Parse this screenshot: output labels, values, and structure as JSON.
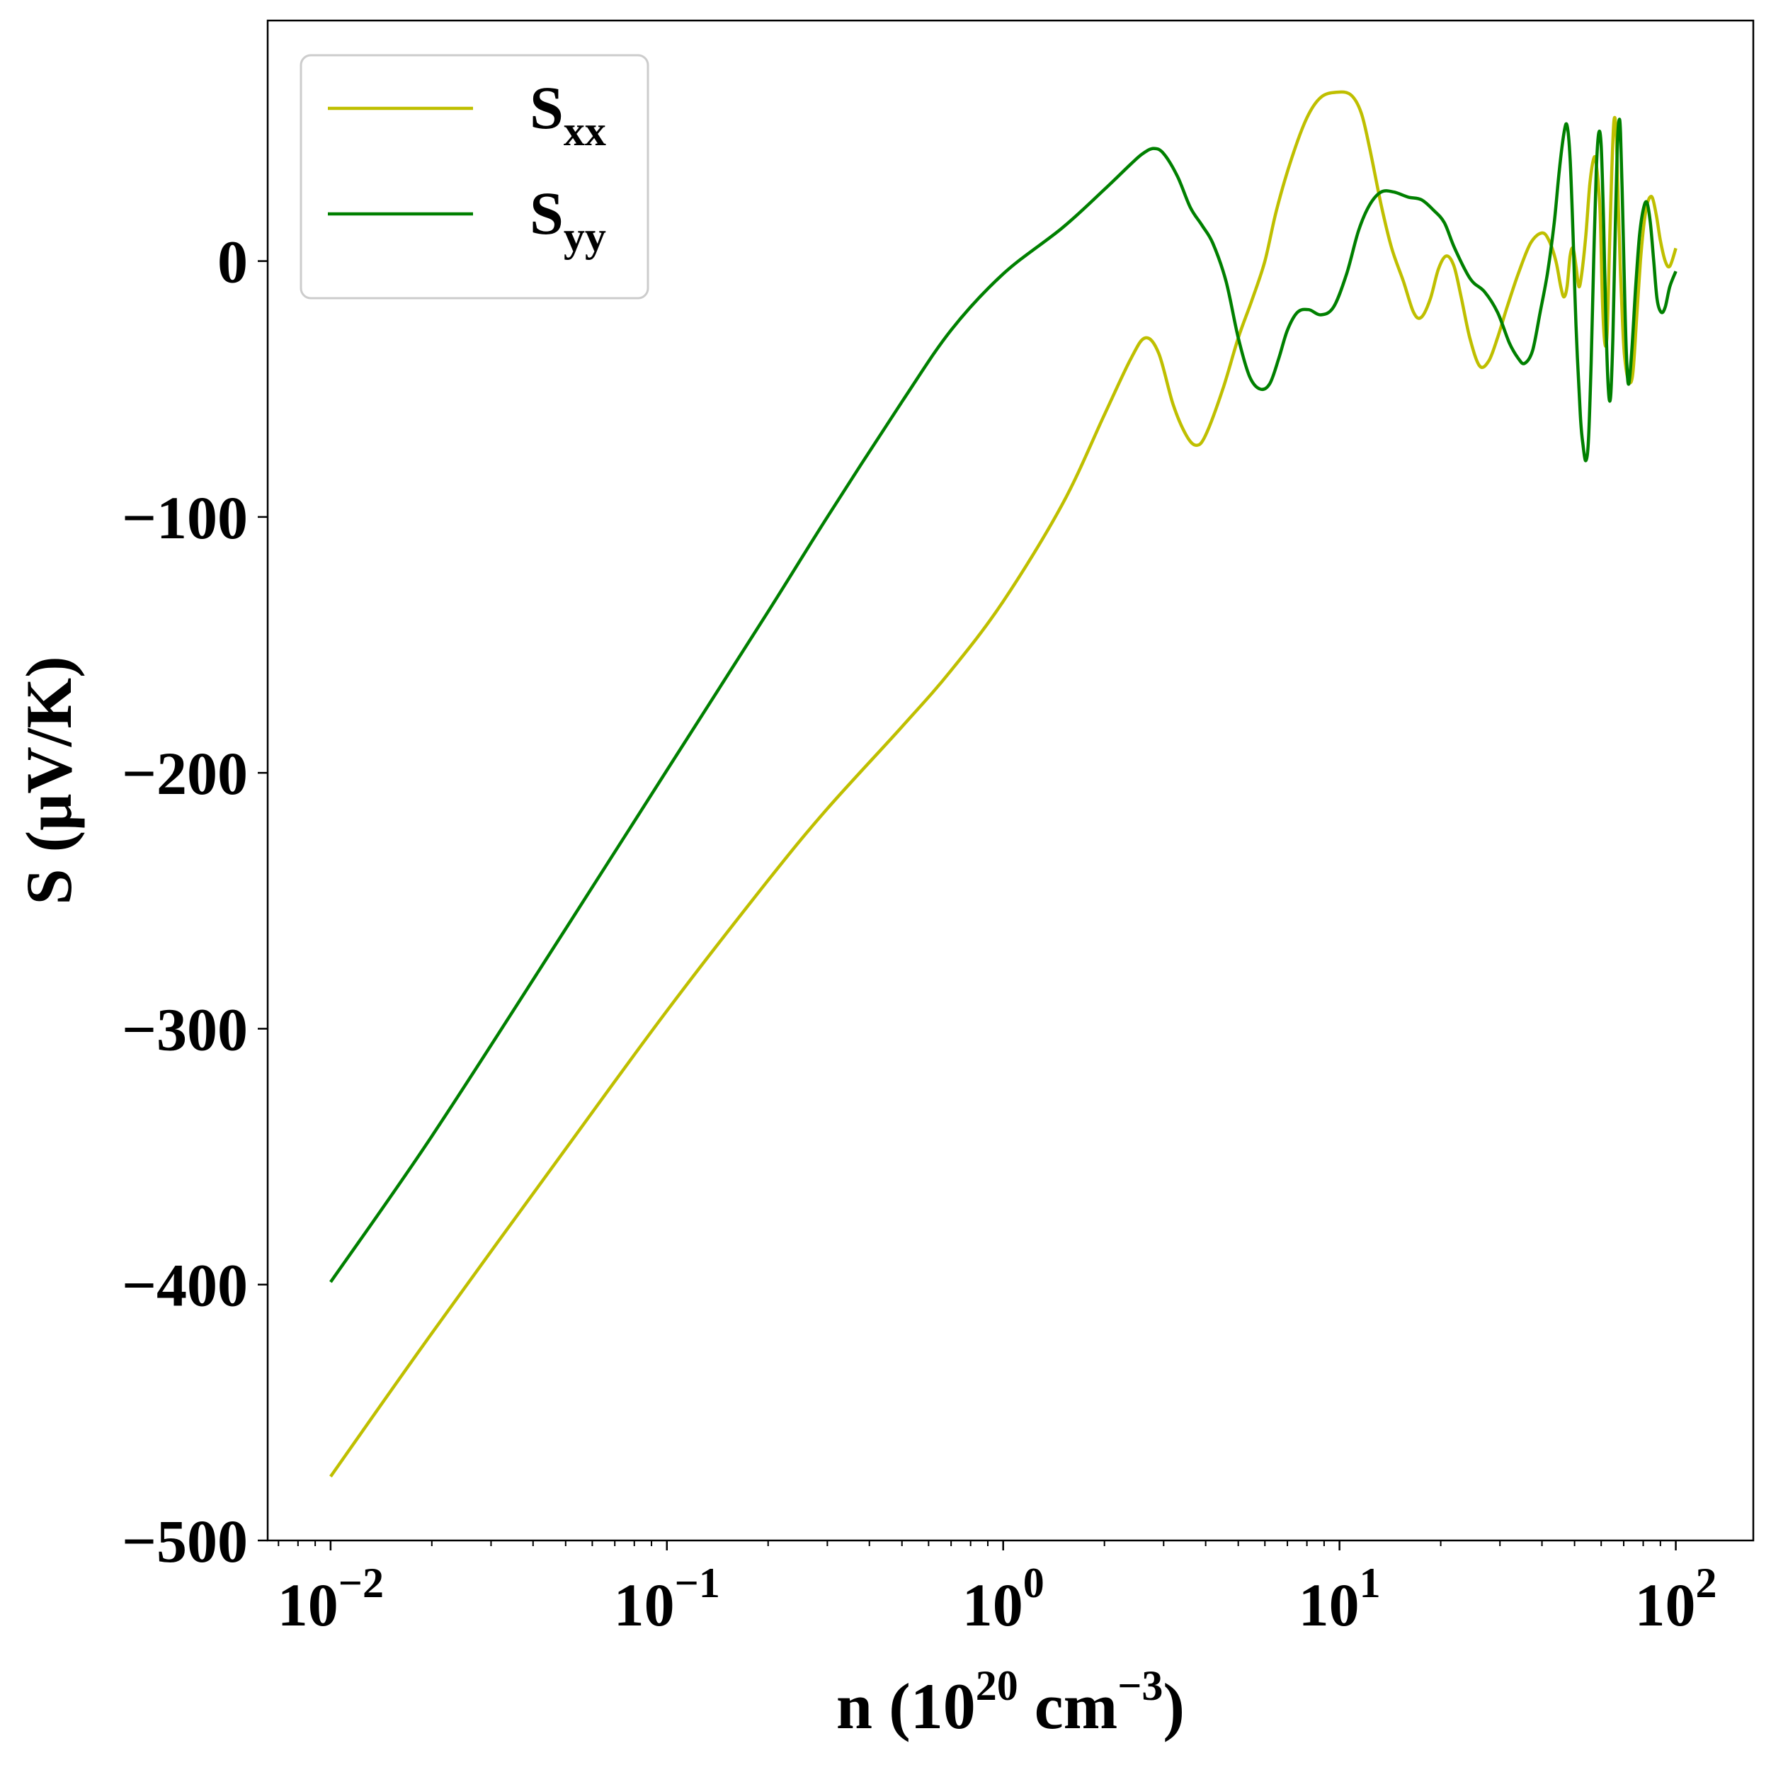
{
  "chart_data": {
    "type": "line",
    "title": "",
    "xlabel": {
      "base": "n (10",
      "exp1": "20",
      "mid": " cm",
      "exp2": "−3",
      "end": ")"
    },
    "ylabel": "S (μV/K)",
    "xscale": "log",
    "xlim": [
      0.0065,
      170
    ],
    "ylim": [
      -500,
      94
    ],
    "x_ticks": [
      {
        "value": 0.01,
        "base": "10",
        "exp": "−2"
      },
      {
        "value": 0.1,
        "base": "10",
        "exp": "−1"
      },
      {
        "value": 1,
        "base": "10",
        "exp": "0"
      },
      {
        "value": 10,
        "base": "10",
        "exp": "1"
      },
      {
        "value": 100,
        "base": "10",
        "exp": "2"
      }
    ],
    "y_ticks": [
      {
        "value": 0,
        "label": "0"
      },
      {
        "value": -100,
        "label": "−100"
      },
      {
        "value": -200,
        "label": "−200"
      },
      {
        "value": -300,
        "label": "−300"
      },
      {
        "value": -400,
        "label": "−400"
      },
      {
        "value": -500,
        "label": "−500"
      }
    ],
    "grid": false,
    "legend": {
      "position": "top-left"
    },
    "series": [
      {
        "name": "S_xx",
        "label_main": "S",
        "label_sub": "xx",
        "color": "#bfbf00",
        "points": [
          [
            0.01,
            -475
          ],
          [
            0.02,
            -419
          ],
          [
            0.05,
            -347
          ],
          [
            0.1,
            -293
          ],
          [
            0.2,
            -242
          ],
          [
            0.3,
            -214
          ],
          [
            0.5,
            -182
          ],
          [
            0.7,
            -160
          ],
          [
            1.0,
            -133
          ],
          [
            1.5,
            -95
          ],
          [
            2.0,
            -60
          ],
          [
            2.4,
            -38
          ],
          [
            2.65,
            -30
          ],
          [
            2.9,
            -36
          ],
          [
            3.2,
            -56
          ],
          [
            3.5,
            -68
          ],
          [
            3.75,
            -72
          ],
          [
            4.0,
            -68
          ],
          [
            4.5,
            -50
          ],
          [
            5.0,
            -30
          ],
          [
            5.5,
            -15
          ],
          [
            6.0,
            0
          ],
          [
            6.5,
            20
          ],
          [
            7.2,
            40
          ],
          [
            8.0,
            56
          ],
          [
            8.8,
            64
          ],
          [
            9.8,
            66
          ],
          [
            10.8,
            65
          ],
          [
            11.6,
            58
          ],
          [
            12.3,
            44
          ],
          [
            13.3,
            22
          ],
          [
            14.3,
            5
          ],
          [
            15.5,
            -8
          ],
          [
            16.6,
            -20
          ],
          [
            17.5,
            -22
          ],
          [
            18.6,
            -15
          ],
          [
            19.7,
            -3
          ],
          [
            20.8,
            2
          ],
          [
            21.9,
            -2
          ],
          [
            23.0,
            -14
          ],
          [
            24.4,
            -30
          ],
          [
            26.1,
            -41
          ],
          [
            27.8,
            -39
          ],
          [
            29.5,
            -30
          ],
          [
            31.5,
            -18
          ],
          [
            34.0,
            -5
          ],
          [
            37.0,
            7
          ],
          [
            40.0,
            11
          ],
          [
            42.0,
            8
          ],
          [
            44.0,
            0
          ],
          [
            45.5,
            -10
          ],
          [
            46.5,
            -14
          ],
          [
            47.5,
            -10
          ],
          [
            48.5,
            2
          ],
          [
            49.5,
            5
          ],
          [
            50.5,
            -2
          ],
          [
            51.5,
            -10
          ],
          [
            52.5,
            -5
          ],
          [
            54.0,
            10
          ],
          [
            55.5,
            30
          ],
          [
            57.0,
            40
          ],
          [
            58.0,
            38
          ],
          [
            59.5,
            20
          ],
          [
            60.5,
            -15
          ],
          [
            61.5,
            -32
          ],
          [
            62.5,
            -28
          ],
          [
            63.5,
            5
          ],
          [
            64.5,
            35
          ],
          [
            65.5,
            55
          ],
          [
            66.5,
            50
          ],
          [
            67.5,
            20
          ],
          [
            68.5,
            -5
          ],
          [
            69.5,
            -25
          ],
          [
            70.5,
            -38
          ],
          [
            72.5,
            -47
          ],
          [
            74.5,
            -44
          ],
          [
            76.5,
            -22
          ],
          [
            78.5,
            0
          ],
          [
            80.5,
            15
          ],
          [
            82.5,
            23
          ],
          [
            85.0,
            25
          ],
          [
            87.5,
            18
          ],
          [
            90.0,
            8
          ],
          [
            93.0,
            0
          ],
          [
            96.0,
            -2
          ],
          [
            100.0,
            5
          ]
        ]
      },
      {
        "name": "S_yy",
        "label_main": "S",
        "label_sub": "yy",
        "color": "#008000",
        "points": [
          [
            0.01,
            -399
          ],
          [
            0.02,
            -342
          ],
          [
            0.05,
            -261
          ],
          [
            0.1,
            -199
          ],
          [
            0.2,
            -137
          ],
          [
            0.3,
            -100
          ],
          [
            0.5,
            -55
          ],
          [
            0.7,
            -27
          ],
          [
            1.0,
            -5
          ],
          [
            1.5,
            13
          ],
          [
            2.0,
            28
          ],
          [
            2.4,
            38
          ],
          [
            2.6,
            42
          ],
          [
            2.8,
            44
          ],
          [
            3.0,
            42
          ],
          [
            3.3,
            33
          ],
          [
            3.6,
            21
          ],
          [
            3.9,
            14
          ],
          [
            4.2,
            7
          ],
          [
            4.6,
            -8
          ],
          [
            5.0,
            -30
          ],
          [
            5.4,
            -45
          ],
          [
            5.8,
            -50
          ],
          [
            6.2,
            -48
          ],
          [
            6.6,
            -38
          ],
          [
            7.0,
            -27
          ],
          [
            7.5,
            -20
          ],
          [
            8.1,
            -19
          ],
          [
            8.8,
            -21
          ],
          [
            9.6,
            -18
          ],
          [
            10.5,
            -5
          ],
          [
            11.4,
            12
          ],
          [
            12.3,
            22
          ],
          [
            13.3,
            27
          ],
          [
            14.5,
            27
          ],
          [
            16.0,
            25
          ],
          [
            17.5,
            24
          ],
          [
            19.0,
            20
          ],
          [
            20.5,
            15
          ],
          [
            22.0,
            5
          ],
          [
            24.5,
            -7
          ],
          [
            27.0,
            -12
          ],
          [
            29.5,
            -20
          ],
          [
            32.0,
            -32
          ],
          [
            34.0,
            -38
          ],
          [
            35.5,
            -40
          ],
          [
            37.5,
            -35
          ],
          [
            39.5,
            -20
          ],
          [
            41.5,
            -5
          ],
          [
            43.5,
            15
          ],
          [
            45.0,
            35
          ],
          [
            46.5,
            50
          ],
          [
            47.5,
            53
          ],
          [
            48.5,
            40
          ],
          [
            49.5,
            10
          ],
          [
            50.5,
            -25
          ],
          [
            52.0,
            -60
          ],
          [
            53.0,
            -72
          ],
          [
            54.0,
            -78
          ],
          [
            55.0,
            -70
          ],
          [
            56.0,
            -40
          ],
          [
            57.0,
            0
          ],
          [
            58.0,
            35
          ],
          [
            59.0,
            50
          ],
          [
            60.0,
            45
          ],
          [
            61.0,
            15
          ],
          [
            62.0,
            -25
          ],
          [
            63.0,
            -50
          ],
          [
            64.0,
            -53
          ],
          [
            65.0,
            -30
          ],
          [
            66.0,
            10
          ],
          [
            67.0,
            45
          ],
          [
            67.8,
            55
          ],
          [
            68.5,
            50
          ],
          [
            69.5,
            20
          ],
          [
            70.5,
            -15
          ],
          [
            71.5,
            -40
          ],
          [
            72.5,
            -48
          ],
          [
            74.0,
            -35
          ],
          [
            76.0,
            -10
          ],
          [
            78.0,
            10
          ],
          [
            80.0,
            20
          ],
          [
            82.0,
            23
          ],
          [
            84.0,
            15
          ],
          [
            86.0,
            0
          ],
          [
            88.0,
            -15
          ],
          [
            90.5,
            -20
          ],
          [
            93.0,
            -18
          ],
          [
            96.0,
            -10
          ],
          [
            100.0,
            -4
          ]
        ]
      }
    ]
  }
}
